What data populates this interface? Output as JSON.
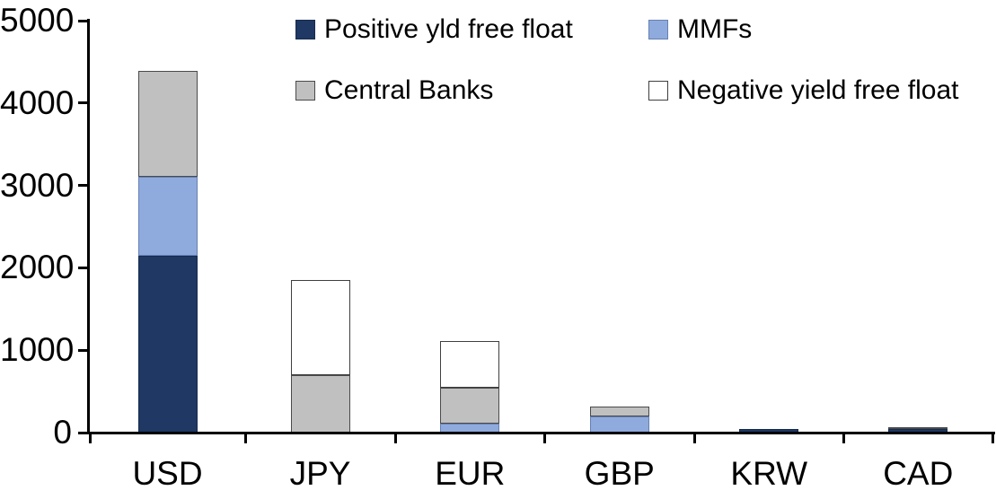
{
  "chart_data": {
    "type": "bar",
    "stacked": true,
    "title": "",
    "xlabel": "",
    "ylabel": "",
    "categories": [
      "USD",
      "JPY",
      "EUR",
      "GBP",
      "KRW",
      "CAD"
    ],
    "series": [
      {
        "name": "Positive yld free float",
        "color": "#1F3864",
        "border_color": "#172B4D",
        "values": [
          2150,
          0,
          0,
          0,
          45,
          40
        ]
      },
      {
        "name": "MMFs",
        "color": "#8FAADC",
        "border_color": "#6680B3",
        "values": [
          950,
          0,
          110,
          200,
          0,
          0
        ]
      },
      {
        "name": "Central Banks",
        "color": "#C0C0C0",
        "border_color": "#4A4A4A",
        "values": [
          1290,
          700,
          430,
          120,
          0,
          30
        ]
      },
      {
        "name": "Negative yield free float",
        "color": "#FFFFFF",
        "border_color": "#3F3F3F",
        "values": [
          0,
          1150,
          570,
          0,
          0,
          0
        ]
      }
    ],
    "ylim": [
      0,
      5000
    ],
    "yticks": [
      0,
      1000,
      2000,
      3000,
      4000,
      5000
    ],
    "ytick_labels": [
      "0",
      "1000",
      "2000",
      "3000",
      "4000",
      "5000"
    ],
    "legend_position": "top",
    "legend_columns": 2,
    "grid": false,
    "axis_color": "#000000",
    "background_color": "#FFFFFF"
  }
}
